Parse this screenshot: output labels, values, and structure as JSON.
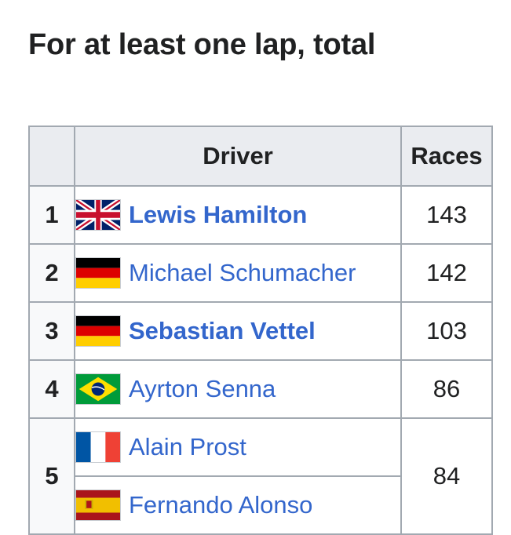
{
  "heading": "For at least one lap, total",
  "table": {
    "headers": {
      "pos": "",
      "driver": "Driver",
      "races": "Races"
    },
    "rows": [
      {
        "pos": "1",
        "driver": "Lewis Hamilton",
        "bold": true,
        "flag": "uk-flag-icon",
        "races": "143"
      },
      {
        "pos": "2",
        "driver": "Michael Schumacher",
        "bold": false,
        "flag": "germany-flag-icon",
        "races": "142"
      },
      {
        "pos": "3",
        "driver": "Sebastian Vettel",
        "bold": true,
        "flag": "germany-flag-icon",
        "races": "103"
      },
      {
        "pos": "4",
        "driver": "Ayrton Senna",
        "bold": false,
        "flag": "brazil-flag-icon",
        "races": "86"
      },
      {
        "pos": "5",
        "driver": "Alain Prost",
        "bold": false,
        "flag": "france-flag-icon",
        "races": "84"
      },
      {
        "pos": "",
        "driver": "Fernando Alonso",
        "bold": false,
        "flag": "spain-flag-icon",
        "races": ""
      }
    ]
  },
  "colors": {
    "link": "#3366cc",
    "header_bg": "#eaecf0",
    "border": "#a2a9b1"
  }
}
